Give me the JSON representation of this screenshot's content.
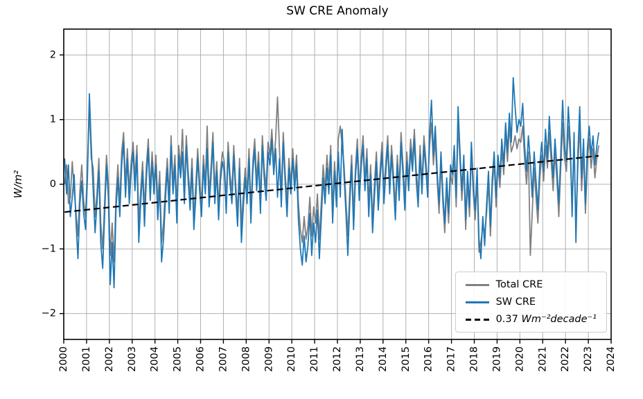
{
  "chart_data": {
    "type": "line",
    "title": "SW CRE Anomaly",
    "ylabel": "W/m²",
    "xlabel": "",
    "grid": true,
    "grid_color": "#b0b0b0",
    "spine_color": "#000000",
    "legend_position": "lower right",
    "xlim": [
      2000,
      2024
    ],
    "ylim": [
      -2.4,
      2.4
    ],
    "xticks": [
      2000,
      2001,
      2002,
      2003,
      2004,
      2005,
      2006,
      2007,
      2008,
      2009,
      2010,
      2011,
      2012,
      2013,
      2014,
      2015,
      2016,
      2017,
      2018,
      2019,
      2020,
      2021,
      2022,
      2023,
      2024
    ],
    "yticks": [
      -2,
      -1,
      0,
      1,
      2
    ],
    "x_start": 2000.04,
    "x_step": 0.0833333,
    "series": [
      {
        "name": "Total CRE",
        "color": "#808080",
        "style": "solid",
        "values": [
          0.0,
          0.3,
          -0.3,
          -0.2,
          0.35,
          -0.1,
          -0.45,
          -0.8,
          -0.1,
          0.3,
          -0.25,
          -0.5,
          0.3,
          1.2,
          0.4,
          0.25,
          -0.5,
          -0.15,
          0.4,
          -0.6,
          -1.0,
          -0.3,
          0.45,
          0.0,
          -1.1,
          -0.6,
          -1.2,
          -0.2,
          0.3,
          -0.3,
          0.5,
          0.8,
          0.0,
          0.55,
          -0.1,
          0.35,
          0.65,
          0.1,
          0.6,
          -0.6,
          -0.1,
          0.35,
          -0.4,
          0.3,
          0.7,
          -0.1,
          0.5,
          0.0,
          0.45,
          -0.3,
          0.2,
          -0.9,
          -0.6,
          -0.05,
          0.4,
          -0.2,
          0.75,
          0.0,
          0.45,
          -0.35,
          0.6,
          0.25,
          0.85,
          -0.1,
          0.75,
          0.2,
          -0.2,
          0.4,
          -0.5,
          0.0,
          0.55,
          0.05,
          -0.3,
          0.45,
          0.0,
          0.9,
          -0.15,
          0.25,
          0.8,
          -0.1,
          0.35,
          -0.35,
          0.2,
          0.5,
          0.35,
          -0.25,
          0.65,
          0.15,
          -0.1,
          0.6,
          0.0,
          -0.45,
          0.4,
          -0.65,
          -0.15,
          0.25,
          -0.1,
          0.55,
          -0.4,
          0.35,
          0.7,
          0.05,
          0.5,
          -0.25,
          0.75,
          0.25,
          -0.05,
          0.65,
          0.45,
          0.85,
          0.3,
          0.7,
          1.35,
          0.55,
          -0.15,
          0.8,
          0.2,
          -0.3,
          0.4,
          0.0,
          0.55,
          0.05,
          0.45,
          -0.3,
          -0.7,
          -0.9,
          -0.5,
          -0.85,
          -0.65,
          -0.2,
          -0.8,
          -0.35,
          -0.6,
          -0.15,
          -0.85,
          -0.3,
          0.3,
          -0.1,
          0.45,
          0.05,
          0.6,
          -0.4,
          0.35,
          -0.15,
          0.7,
          0.9,
          0.6,
          0.3,
          -0.25,
          -0.8,
          -0.1,
          0.45,
          -0.5,
          0.25,
          0.7,
          -0.05,
          0.4,
          0.75,
          0.05,
          0.55,
          -0.3,
          0.3,
          -0.55,
          0.0,
          0.5,
          -0.2,
          0.25,
          0.65,
          -0.1,
          0.35,
          0.75,
          0.0,
          0.6,
          0.15,
          -0.35,
          0.45,
          -0.05,
          0.8,
          0.3,
          -0.2,
          0.5,
          0.05,
          0.7,
          0.35,
          0.85,
          0.2,
          -0.15,
          0.6,
          0.0,
          0.75,
          0.4,
          -0.05,
          0.6,
          0.95,
          0.3,
          0.7,
          0.05,
          -0.45,
          0.35,
          -0.3,
          -0.75,
          -0.05,
          -0.6,
          0.15,
          0.0,
          0.45,
          -0.35,
          0.95,
          0.35,
          -0.25,
          0.3,
          -0.7,
          0.05,
          -0.5,
          0.5,
          -0.15,
          -0.55,
          0.1,
          -1.05,
          -0.9,
          -0.65,
          -0.75,
          -0.45,
          0.05,
          -0.8,
          -0.05,
          0.35,
          -0.35,
          0.3,
          -0.05,
          0.55,
          0.15,
          0.8,
          0.35,
          0.9,
          0.5,
          0.6,
          0.75,
          0.55,
          0.7,
          0.65,
          0.9,
          0.4,
          0.0,
          0.5,
          -1.1,
          -0.45,
          0.25,
          -0.2,
          -0.6,
          0.1,
          0.45,
          0.05,
          0.6,
          0.25,
          0.8,
          0.35,
          -0.1,
          0.5,
          0.05,
          -0.5,
          0.25,
          0.95,
          0.4,
          0.2,
          0.9,
          0.45,
          -0.3,
          0.6,
          -0.65,
          0.25,
          0.95,
          -0.1,
          0.5,
          -0.45,
          0.35,
          0.7,
          0.25,
          0.55,
          0.1,
          0.4,
          0.6
        ]
      },
      {
        "name": "SW CRE",
        "color": "#1f77b4",
        "style": "solid",
        "values": [
          0.4,
          -0.15,
          0.3,
          -0.5,
          -0.2,
          0.15,
          -0.6,
          -1.15,
          -0.3,
          0.05,
          -0.45,
          -0.7,
          0.1,
          1.4,
          0.6,
          -0.1,
          -0.75,
          -0.3,
          0.2,
          -0.9,
          -1.3,
          -0.5,
          0.3,
          -0.2,
          -1.55,
          -0.9,
          -1.6,
          -0.4,
          0.1,
          -0.5,
          0.3,
          0.65,
          -0.2,
          0.4,
          -0.3,
          0.2,
          0.5,
          -0.1,
          0.45,
          -0.9,
          -0.3,
          0.2,
          -0.65,
          0.1,
          0.55,
          -0.25,
          0.35,
          -0.15,
          0.3,
          -0.55,
          0.0,
          -1.2,
          -0.85,
          -0.25,
          0.25,
          -0.45,
          0.6,
          -0.15,
          0.3,
          -0.6,
          0.45,
          0.1,
          0.5,
          -0.3,
          0.6,
          0.05,
          -0.4,
          0.25,
          -0.7,
          -0.2,
          0.4,
          -0.1,
          -0.5,
          0.3,
          -0.15,
          0.55,
          -0.35,
          0.1,
          0.65,
          -0.3,
          0.2,
          -0.55,
          0.05,
          0.35,
          0.2,
          -0.45,
          0.5,
          0.0,
          -0.3,
          0.45,
          -0.15,
          -0.65,
          0.25,
          -0.9,
          -0.35,
          0.1,
          -0.3,
          0.4,
          -0.6,
          0.2,
          0.55,
          -0.1,
          0.35,
          -0.45,
          0.6,
          0.1,
          -0.25,
          0.5,
          0.3,
          0.7,
          0.15,
          0.55,
          -0.2,
          0.4,
          -0.35,
          0.65,
          0.05,
          -0.5,
          0.25,
          -0.15,
          0.4,
          -0.1,
          0.3,
          -0.55,
          -1.0,
          -1.25,
          -0.8,
          -1.2,
          -0.95,
          -0.45,
          -1.1,
          -0.6,
          -0.9,
          -0.4,
          -1.15,
          -0.55,
          0.1,
          -0.3,
          0.25,
          -0.15,
          0.45,
          -0.6,
          0.2,
          -0.35,
          0.5,
          -0.2,
          0.85,
          0.15,
          -0.45,
          -1.1,
          -0.3,
          0.3,
          -0.7,
          0.1,
          0.55,
          -0.25,
          0.25,
          0.6,
          -0.1,
          0.4,
          -0.5,
          0.15,
          -0.75,
          -0.2,
          0.35,
          -0.4,
          0.1,
          0.5,
          -0.3,
          0.2,
          0.6,
          -0.15,
          0.45,
          0.0,
          -0.55,
          0.3,
          -0.25,
          0.65,
          0.15,
          -0.4,
          0.35,
          -0.1,
          0.55,
          0.2,
          0.7,
          0.05,
          -0.35,
          0.45,
          -0.15,
          0.6,
          0.25,
          -0.2,
          0.8,
          1.3,
          0.45,
          0.9,
          0.2,
          -0.3,
          0.5,
          -0.15,
          -0.6,
          0.1,
          -0.45,
          0.3,
          0.15,
          0.6,
          -0.2,
          1.2,
          0.5,
          -0.1,
          0.45,
          -0.55,
          0.2,
          -0.35,
          0.65,
          0.0,
          -0.4,
          0.25,
          -0.85,
          -1.15,
          -0.5,
          -0.95,
          -0.3,
          0.2,
          -0.65,
          0.1,
          0.5,
          -0.2,
          0.45,
          0.1,
          0.7,
          0.3,
          0.95,
          0.5,
          1.1,
          0.65,
          1.65,
          1.2,
          0.8,
          1.0,
          0.9,
          1.25,
          0.6,
          0.2,
          0.75,
          0.35,
          -0.2,
          0.5,
          0.05,
          -0.4,
          0.3,
          0.65,
          0.2,
          0.85,
          0.4,
          1.05,
          0.55,
          0.1,
          0.7,
          0.25,
          -0.3,
          0.45,
          1.3,
          0.6,
          0.35,
          1.2,
          0.65,
          -0.5,
          0.8,
          -0.9,
          0.45,
          1.2,
          0.1,
          0.7,
          -0.3,
          0.55,
          0.9,
          0.45,
          0.75,
          0.3,
          0.6,
          0.8
        ]
      },
      {
        "name": "0.37 Wm⁻²decade⁻¹",
        "color": "#000000",
        "style": "dashed",
        "trend": {
          "x": [
            2000.04,
            2023.45
          ],
          "y": [
            -0.43,
            0.44
          ]
        }
      }
    ]
  },
  "legend": {
    "trend_prefix": "0.37 ",
    "trend_math": "Wm⁻²decade⁻¹"
  }
}
